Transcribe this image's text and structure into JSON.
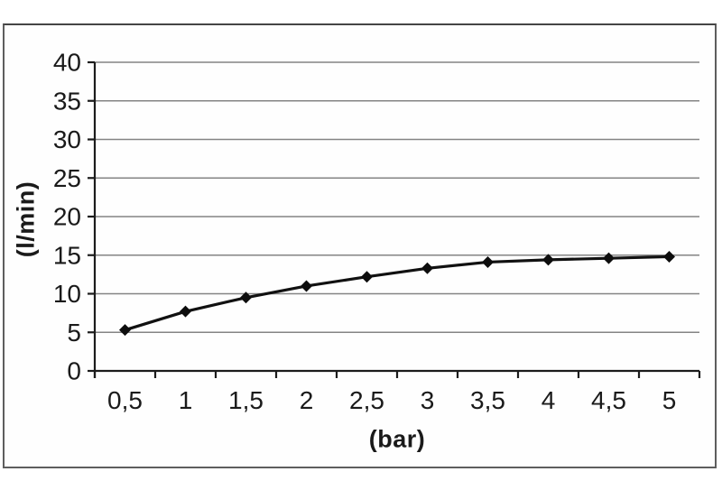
{
  "chart_data": {
    "type": "line",
    "title": "",
    "xlabel": "(bar)",
    "ylabel": "(l/min)",
    "x": [
      0.5,
      1,
      1.5,
      2,
      2.5,
      3,
      3.5,
      4,
      4.5,
      5
    ],
    "x_tick_labels": [
      "0,5",
      "1",
      "1,5",
      "2",
      "2,5",
      "3",
      "3,5",
      "4",
      "4,5",
      "5"
    ],
    "values": [
      5.3,
      7.7,
      9.5,
      11.0,
      12.2,
      13.3,
      14.1,
      14.4,
      14.6,
      14.8
    ],
    "ylim": [
      0,
      40
    ],
    "ytick_step": 5,
    "y_tick_labels": [
      "0",
      "5",
      "10",
      "15",
      "20",
      "25",
      "30",
      "35",
      "40"
    ],
    "grid": "horizontal-only",
    "legend": "none",
    "marker": "diamond",
    "colors": {
      "line": "#111111",
      "marker": "#0d0d0d",
      "grid": "#848484",
      "axis": "#1c1c1c",
      "text": "#1a1a1a",
      "frame_border": "#5e5e5e",
      "background": "#ffffff"
    }
  }
}
